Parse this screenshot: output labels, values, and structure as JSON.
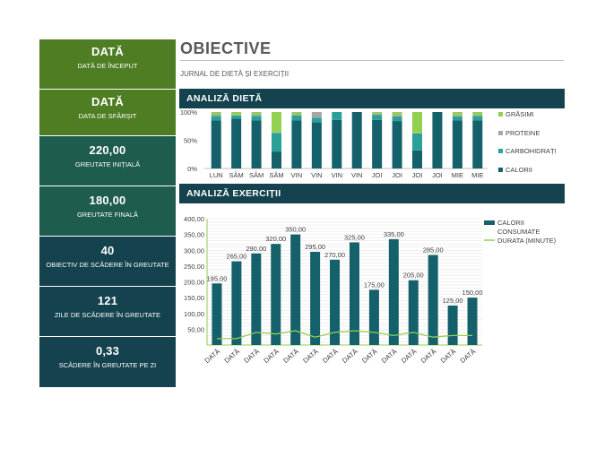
{
  "header": {
    "title": "OBIECTIVE",
    "subtitle": "JURNAL DE DIETĂ ȘI EXERCIȚII"
  },
  "sidebar": {
    "tiles": [
      {
        "value": "DATĂ",
        "label": "DATĂ DE ÎNCEPUT",
        "color": "#4e7d23"
      },
      {
        "value": "DATĂ",
        "label": "DATA DE SFÂRȘIT",
        "color": "#4e7d23"
      },
      {
        "value": "220,00",
        "label": "GREUTATE INIȚIALĂ",
        "color": "#1e5c4e"
      },
      {
        "value": "180,00",
        "label": "GREUTATE FINALĂ",
        "color": "#1e5c4e"
      },
      {
        "value": "40",
        "label": "OBIECTIV DE SCĂDERE ÎN GREUTATE",
        "color": "#14424e"
      },
      {
        "value": "121",
        "label": "ZILE DE SCĂDERE ÎN GREUTATE",
        "color": "#14424e"
      },
      {
        "value": "0,33",
        "label": "SCĂDERE ÎN GREUTATE PE ZI",
        "color": "#14424e"
      }
    ]
  },
  "sections": {
    "diet": "ANALIZĂ DIETĂ",
    "exercise": "ANALIZĂ EXERCIȚII"
  },
  "colors": {
    "grasimi": "#92d050",
    "proteine": "#a6a6a6",
    "carbohidrati": "#2aa198",
    "calorii": "#14606b",
    "durata": "#92d050"
  },
  "chart_data": [
    {
      "type": "bar",
      "stacked": "percent",
      "categories": [
        "LUN",
        "SÂM",
        "SÂM",
        "SÂM",
        "VIN",
        "VIN",
        "VIN",
        "VIN",
        "JOI",
        "JOI",
        "JOI",
        "JOI",
        "MIE",
        "MIE"
      ],
      "series": [
        {
          "name": "CALORII",
          "values": [
            85,
            88,
            85,
            30,
            85,
            82,
            86,
            100,
            86,
            84,
            32,
            100,
            85,
            85
          ]
        },
        {
          "name": "CARBOHIDRAȚI",
          "values": [
            8,
            6,
            8,
            33,
            9,
            8,
            14,
            0,
            9,
            8,
            30,
            0,
            7,
            8
          ]
        },
        {
          "name": "PROTEINE",
          "values": [
            3,
            1,
            3,
            1,
            2,
            10,
            0,
            0,
            2,
            3,
            1,
            0,
            3,
            2
          ]
        },
        {
          "name": "GRĂSIMI",
          "values": [
            4,
            5,
            4,
            36,
            4,
            0,
            0,
            0,
            3,
            5,
            37,
            0,
            5,
            5
          ]
        }
      ],
      "ylim": [
        0,
        100
      ],
      "yticks": [
        "0%",
        "50%",
        "100%"
      ],
      "legend": "right"
    },
    {
      "type": "bar",
      "categories": [
        "DATĂ",
        "DATĂ",
        "DATĂ",
        "DATĂ",
        "DATĂ",
        "DATĂ",
        "DATĂ",
        "DATĂ",
        "DATĂ",
        "DATĂ",
        "DATĂ",
        "DATĂ",
        "DATĂ",
        "DATĂ"
      ],
      "series": [
        {
          "name": "CALORII CONSUMATE",
          "type": "bar",
          "values": [
            195,
            265,
            290,
            320,
            350,
            295,
            270,
            325,
            175,
            335,
            205,
            285,
            125,
            150
          ],
          "labels": [
            "195,00",
            "265,00",
            "290,00",
            "320,00",
            "350,00",
            "295,00",
            "270,00",
            "325,00",
            "175,00",
            "335,00",
            "205,00",
            "285,00",
            "125,00",
            "150,00"
          ]
        },
        {
          "name": "DURATA (MINUTE)",
          "type": "line",
          "values": [
            20,
            20,
            40,
            35,
            45,
            25,
            40,
            45,
            40,
            30,
            40,
            25,
            30,
            30
          ]
        }
      ],
      "ylim": [
        0,
        400
      ],
      "yticks": [
        "50,00",
        "100,00",
        "150,00",
        "200,00",
        "250,00",
        "300,00",
        "350,00",
        "400,00"
      ],
      "legend": "right"
    }
  ]
}
